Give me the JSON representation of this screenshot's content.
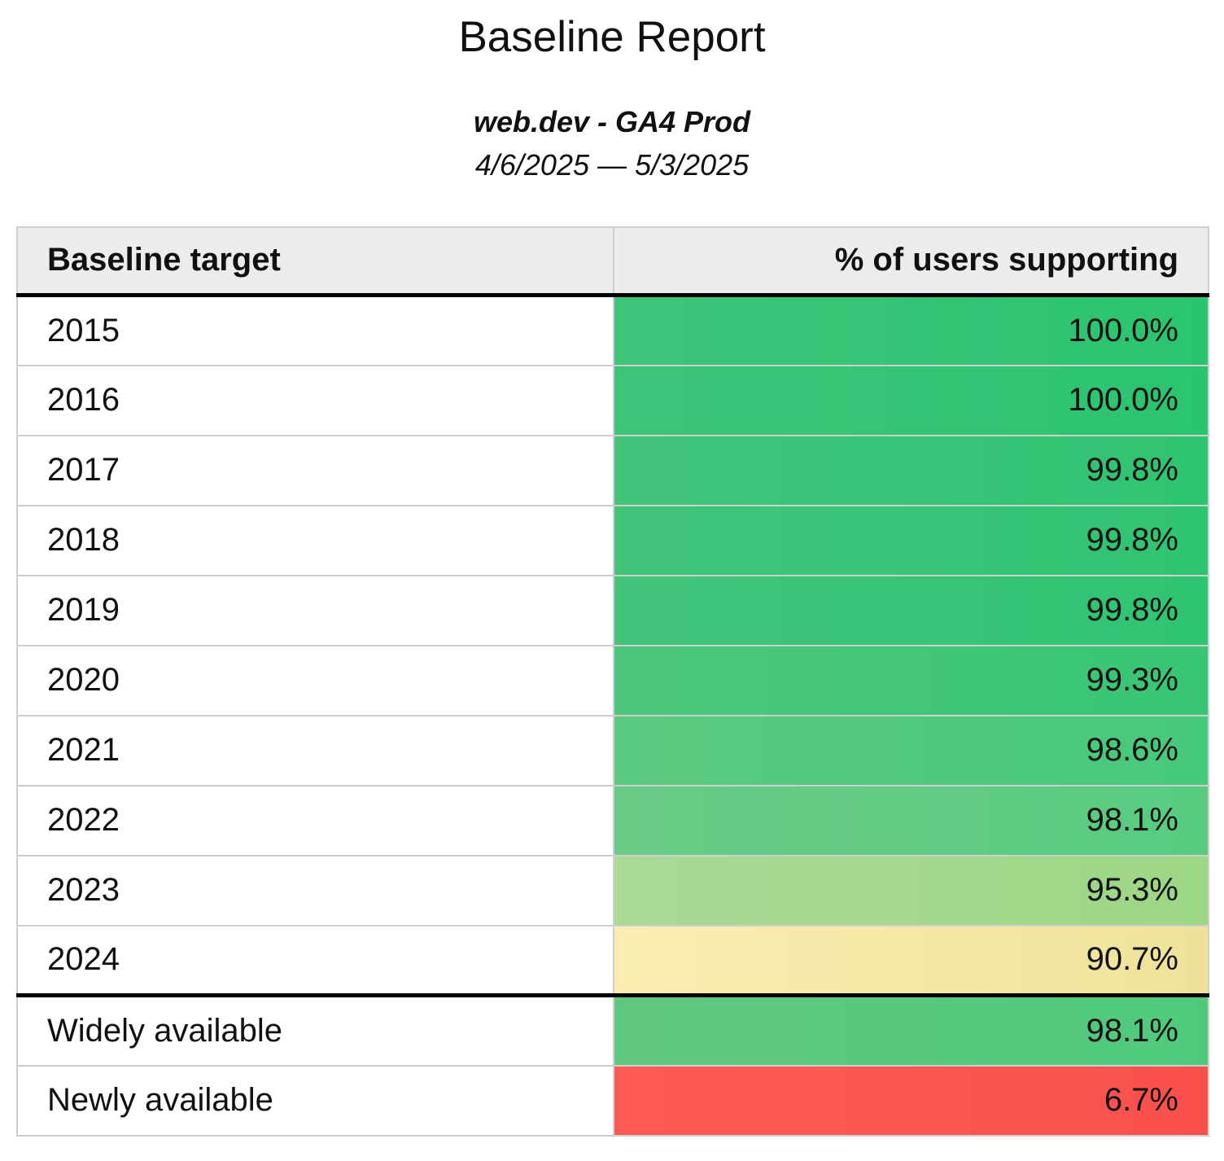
{
  "report": {
    "title": "Baseline Report",
    "subtitle": "web.dev - GA4 Prod",
    "date_range": "4/6/2025 — 5/3/2025"
  },
  "table": {
    "header": {
      "target": "Baseline target",
      "value": "% of users supporting"
    },
    "rows": [
      {
        "target": "2015",
        "value": "100.0%",
        "group": "year",
        "color_left": "#3fc57a",
        "color_right": "#2ac470"
      },
      {
        "target": "2016",
        "value": "100.0%",
        "group": "year",
        "color_left": "#3fc57a",
        "color_right": "#2ac470"
      },
      {
        "target": "2017",
        "value": "99.8%",
        "group": "year",
        "color_left": "#42c57b",
        "color_right": "#2ec472"
      },
      {
        "target": "2018",
        "value": "99.8%",
        "group": "year",
        "color_left": "#42c57b",
        "color_right": "#2ec472"
      },
      {
        "target": "2019",
        "value": "99.8%",
        "group": "year",
        "color_left": "#42c57b",
        "color_right": "#2ec472"
      },
      {
        "target": "2020",
        "value": "99.3%",
        "group": "year",
        "color_left": "#4dc67d",
        "color_right": "#37c675"
      },
      {
        "target": "2021",
        "value": "98.6%",
        "group": "year",
        "color_left": "#5cc981",
        "color_right": "#46c97c"
      },
      {
        "target": "2022",
        "value": "98.1%",
        "group": "year",
        "color_left": "#6acb87",
        "color_right": "#58cb81"
      },
      {
        "target": "2023",
        "value": "95.3%",
        "group": "year",
        "color_left": "#aad995",
        "color_right": "#9cd785"
      },
      {
        "target": "2024",
        "value": "90.7%",
        "group": "year",
        "color_left": "#fdecb2",
        "color_right": "#eee29a"
      },
      {
        "target": "Widely available",
        "value": "98.1%",
        "group": "availability",
        "color_left": "#60c77f",
        "color_right": "#4fca7d"
      },
      {
        "target": "Newly available",
        "value": "6.7%",
        "group": "availability",
        "color_left": "#ff5b56",
        "color_right": "#f9504c"
      }
    ]
  },
  "chart_data": {
    "type": "table",
    "title": "Baseline Report",
    "subtitle": "web.dev - GA4 Prod",
    "date_range": "4/6/2025 — 5/3/2025",
    "columns": [
      "Baseline target",
      "% of users supporting"
    ],
    "categories": [
      "2015",
      "2016",
      "2017",
      "2018",
      "2019",
      "2020",
      "2021",
      "2022",
      "2023",
      "2024",
      "Widely available",
      "Newly available"
    ],
    "values": [
      100.0,
      100.0,
      99.8,
      99.8,
      99.8,
      99.3,
      98.6,
      98.1,
      95.3,
      90.7,
      98.1,
      6.7
    ],
    "value_unit": "%",
    "layout_hints": "two-column table; value cells conditionally colored green (high) to yellow to red (low); thick black rule under header and between year rows and availability rows"
  }
}
